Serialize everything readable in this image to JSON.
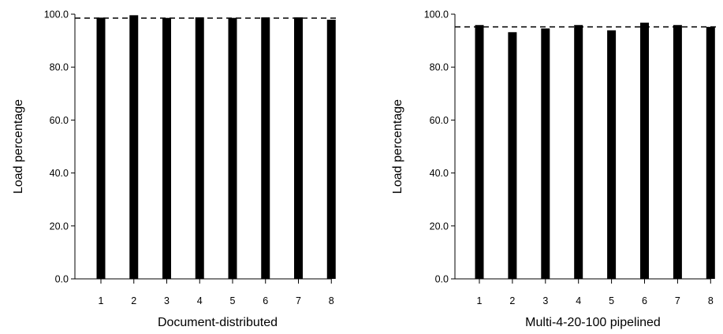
{
  "chart_data": [
    {
      "type": "bar",
      "categories": [
        "1",
        "2",
        "3",
        "4",
        "5",
        "6",
        "7",
        "8"
      ],
      "values": [
        98.7,
        99.6,
        98.6,
        98.8,
        98.6,
        98.8,
        98.8,
        97.9
      ],
      "reference_line": 98.5,
      "xlabel": "Document-distributed",
      "ylabel": "Load percentage",
      "ylim": [
        0,
        100
      ],
      "yticks": [
        "0.0",
        "20.0",
        "40.0",
        "60.0",
        "80.0",
        "100.0"
      ],
      "grid": false,
      "bar_color": "#000000"
    },
    {
      "type": "bar",
      "categories": [
        "1",
        "2",
        "3",
        "4",
        "5",
        "6",
        "7",
        "8"
      ],
      "values": [
        95.9,
        93.2,
        94.6,
        95.9,
        93.9,
        96.8,
        95.9,
        95.2
      ],
      "reference_line": 95.2,
      "xlabel": "Multi-4-20-100 pipelined",
      "ylabel": "Load percentage",
      "ylim": [
        0,
        100
      ],
      "yticks": [
        "0.0",
        "20.0",
        "40.0",
        "60.0",
        "80.0",
        "100.0"
      ],
      "grid": false,
      "bar_color": "#000000"
    }
  ]
}
